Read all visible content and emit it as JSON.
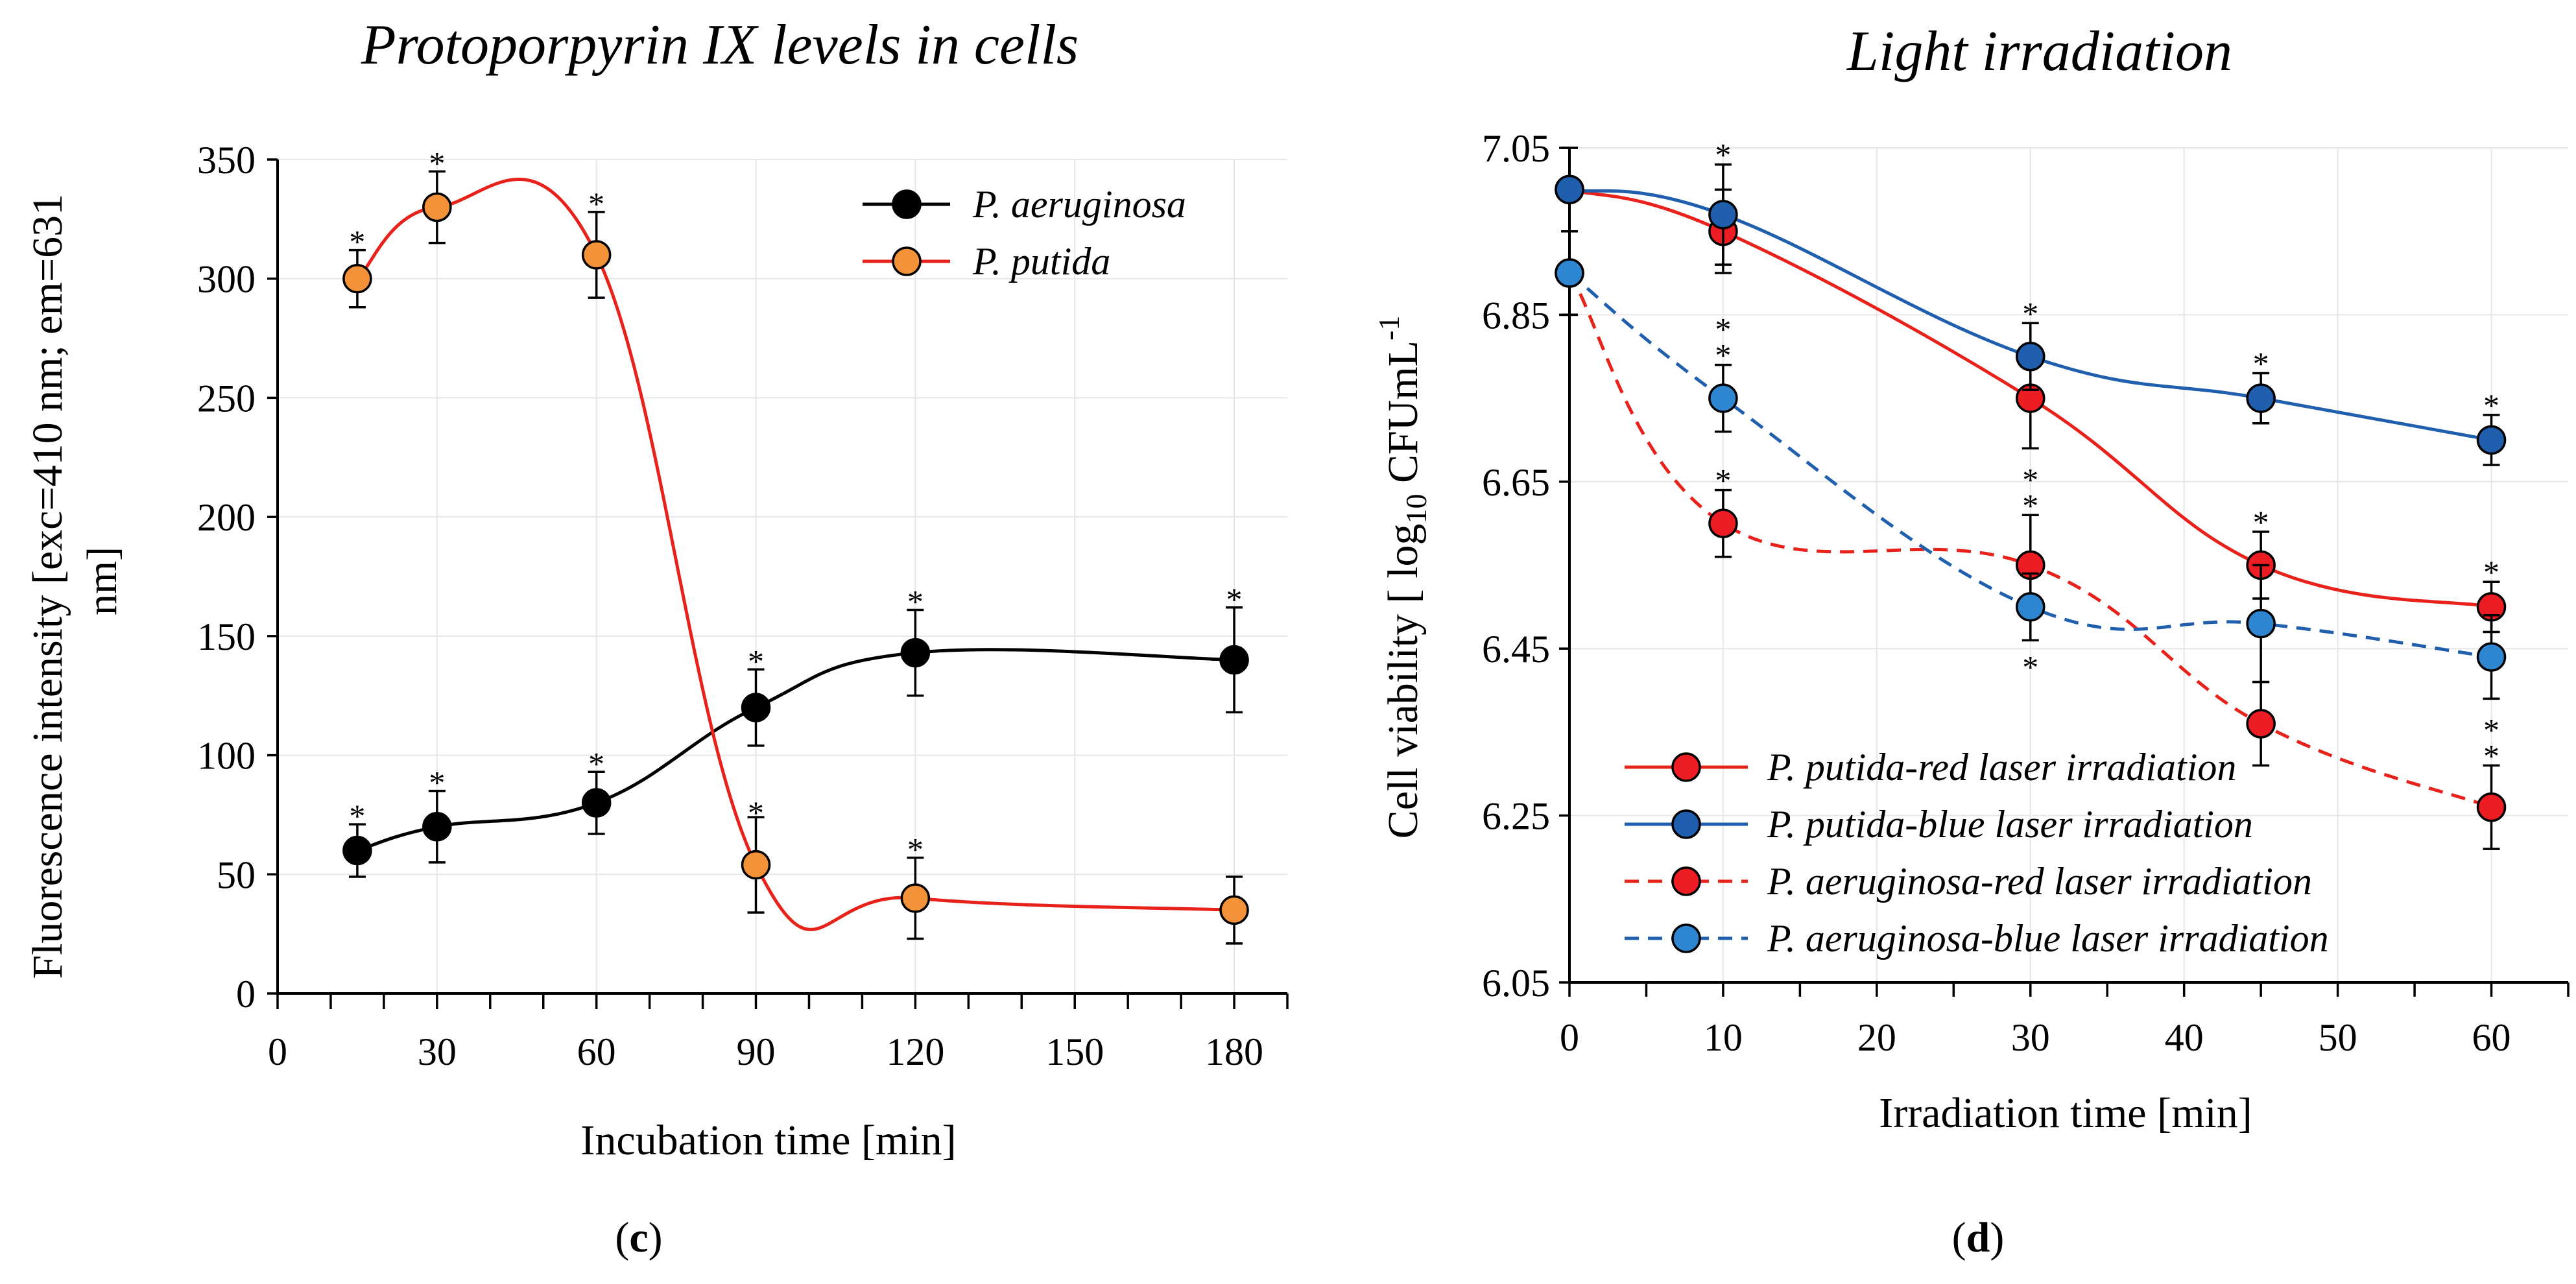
{
  "chart_data": [
    {
      "type": "line",
      "panel_label": "(c)",
      "title": "Protoporpyrin IX levels in cells",
      "xlabel": "Incubation time [min]",
      "ylabel": "Fluorescence intensity [exc=410 nm; em=631 nm]",
      "xlim": [
        0,
        190
      ],
      "ylim": [
        0,
        350
      ],
      "xticks": [
        0,
        30,
        60,
        90,
        120,
        150,
        180
      ],
      "yticks": [
        0,
        50,
        100,
        150,
        200,
        250,
        300,
        350
      ],
      "legend_position": "top-right",
      "grid": true,
      "series": [
        {
          "name": "P. aeruginosa",
          "color": "#000000",
          "marker_fill": "#000000",
          "dash": "solid",
          "x": [
            15,
            30,
            60,
            90,
            120,
            180
          ],
          "values": [
            60,
            70,
            80,
            120,
            143,
            140
          ],
          "errors": [
            11,
            15,
            13,
            16,
            18,
            22
          ],
          "significant": [
            true,
            true,
            true,
            true,
            true,
            true
          ]
        },
        {
          "name": "P. putida",
          "color": "#e8221b",
          "marker_fill": "#f4923a",
          "dash": "solid",
          "x": [
            15,
            30,
            60,
            90,
            120,
            180
          ],
          "values": [
            300,
            330,
            310,
            54,
            40,
            35
          ],
          "errors": [
            12,
            15,
            18,
            20,
            17,
            14
          ],
          "significant": [
            true,
            true,
            true,
            true,
            true,
            false
          ]
        }
      ]
    },
    {
      "type": "line",
      "panel_label": "(d)",
      "title": "Light irradiation",
      "xlabel": "Irradiation time [min]",
      "ylabel_parts": [
        "Cell viability [ log",
        "10",
        " CFUmL",
        "-1"
      ],
      "xlim": [
        0,
        65
      ],
      "ylim": [
        6.05,
        7.05
      ],
      "xticks": [
        0,
        10,
        20,
        30,
        40,
        50,
        60
      ],
      "yticks": [
        "6.05",
        "6.25",
        "6.45",
        "6.65",
        "6.85",
        "7.05"
      ],
      "legend_position": "bottom-left",
      "grid": true,
      "series": [
        {
          "name": "P. putida-red laser irradiation",
          "color": "#e8221b",
          "marker_fill": "#ee1c23",
          "dash": "solid",
          "x": [
            0,
            10,
            30,
            45,
            60
          ],
          "values": [
            7.0,
            6.95,
            6.75,
            6.55,
            6.5
          ],
          "errors": [
            0.05,
            0.05,
            0.06,
            0.04,
            0.03
          ],
          "stars": [
            0,
            0,
            0,
            1,
            1
          ]
        },
        {
          "name": "P. putida-blue laser irradiation",
          "color": "#1f5fae",
          "marker_fill": "#1f5fae",
          "dash": "solid",
          "x": [
            0,
            10,
            30,
            45,
            60
          ],
          "values": [
            7.0,
            6.97,
            6.8,
            6.75,
            6.7
          ],
          "errors": [
            0.05,
            0.06,
            0.04,
            0.03,
            0.03
          ],
          "stars": [
            0,
            1,
            1,
            1,
            1
          ]
        },
        {
          "name": "P. aeruginosa-red laser irradiation",
          "color": "#e8221b",
          "marker_fill": "#ee1c23",
          "dash": "dashed",
          "x": [
            0,
            10,
            30,
            45,
            60
          ],
          "values": [
            6.9,
            6.6,
            6.55,
            6.36,
            6.26
          ],
          "errors": [
            0.05,
            0.04,
            0.06,
            0.05,
            0.05
          ],
          "stars": [
            0,
            1,
            2,
            0,
            2
          ]
        },
        {
          "name": "P. aeruginosa-blue laser irradiation",
          "color": "#1f5fae",
          "marker_fill": "#2e86d1",
          "dash": "dashed",
          "x": [
            0,
            10,
            30,
            45,
            60
          ],
          "values": [
            6.9,
            6.75,
            6.5,
            6.48,
            6.44
          ],
          "errors": [
            0.05,
            0.04,
            0.04,
            0.07,
            0.05
          ],
          "stars": [
            0,
            2,
            -1,
            0,
            0
          ]
        }
      ]
    }
  ]
}
